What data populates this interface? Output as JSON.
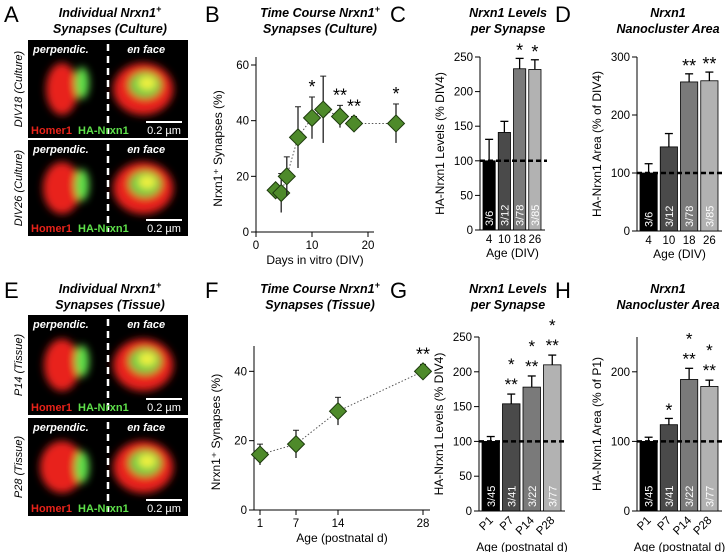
{
  "panels": {
    "A": {
      "letter": "A",
      "title1": "Individual Nrxn1",
      "title_sup": "+",
      "title2": "Synapses (Culture)",
      "images": [
        {
          "row": "DIV18 (Culture)",
          "left": "perpendic.",
          "right": "en face",
          "scale": "0.2 µm",
          "stain1": "Homer1",
          "stain2": "HA-Nrxn1"
        },
        {
          "row": "DIV26 (Culture)",
          "left": "perpendic.",
          "right": "en face",
          "scale": "0.2 µm",
          "stain1": "Homer1",
          "stain2": "HA-Nrxn1"
        }
      ]
    },
    "E": {
      "letter": "E",
      "title1": "Individual Nrxn1",
      "title_sup": "+",
      "title2": "Synapses (Tissue)",
      "images": [
        {
          "row": "P14 (Tissue)",
          "left": "perpendic.",
          "right": "en face",
          "scale": "0.2 µm",
          "stain1": "Homer1",
          "stain2": "HA-Nrxn1"
        },
        {
          "row": "P28 (Tissue)",
          "left": "perpendic.",
          "right": "en face",
          "scale": "0.2 µm",
          "stain1": "Homer1",
          "stain2": "HA-Nrxn1"
        }
      ]
    }
  },
  "colors": {
    "marker": "#4e8a2a",
    "red": "#e8231a",
    "green": "#5ee04a",
    "yellow": "#f0f040"
  },
  "chart_data": [
    {
      "id": "B",
      "letter": "B",
      "type": "line",
      "title1": "Time Course Nrxn1",
      "title_sup": "+",
      "title2": "Synapses (Culture)",
      "xlabel": "Days in vitro  (DIV)",
      "ylabel": "Nrxn1⁺ Synapses (%)",
      "xlim": [
        0,
        25
      ],
      "ylim": [
        0,
        60
      ],
      "xticks": [
        0,
        10,
        20
      ],
      "yticks": [
        0,
        20,
        40,
        60
      ],
      "points": [
        {
          "x": 3.5,
          "y": 15,
          "err": 2,
          "sig": ""
        },
        {
          "x": 4.5,
          "y": 14,
          "err": 7,
          "sig": ""
        },
        {
          "x": 5.5,
          "y": 20,
          "err": 7,
          "sig": ""
        },
        {
          "x": 7.5,
          "y": 34,
          "err": 11,
          "sig": ""
        },
        {
          "x": 10,
          "y": 41,
          "err": 7.5,
          "sig": "*"
        },
        {
          "x": 12,
          "y": 44,
          "err": 12,
          "sig": ""
        },
        {
          "x": 15,
          "y": 41.5,
          "err": 4,
          "sig": "**"
        },
        {
          "x": 17.5,
          "y": 39,
          "err": 2.5,
          "sig": "**"
        },
        {
          "x": 25,
          "y": 39,
          "err": 7,
          "sig": "*"
        }
      ]
    },
    {
      "id": "C",
      "letter": "C",
      "type": "bar",
      "title1": "Nrxn1 Levels",
      "title2": "per Synapse",
      "xlabel": "Age (DIV)",
      "ylabel": "HA-Nrxn1 Levels (% DIV4)",
      "ylim": [
        0,
        250
      ],
      "yticks": [
        0,
        50,
        100,
        150,
        200,
        250
      ],
      "refline": 100,
      "categories": [
        "4",
        "10",
        "18",
        "26"
      ],
      "values": [
        100,
        141,
        233,
        232
      ],
      "errors": [
        31,
        16,
        15,
        14
      ],
      "n_labels": [
        "3/6",
        "3/12",
        "3/78",
        "3/85"
      ],
      "sig": [
        "",
        "",
        "*",
        "*"
      ]
    },
    {
      "id": "D",
      "letter": "D",
      "type": "bar",
      "title1": "Nrxn1",
      "title2": "Nanocluster Area",
      "xlabel": "Age (DIV)",
      "ylabel": "HA-Nrxn1 Area (% of DIV4)",
      "ylim": [
        0,
        300
      ],
      "yticks": [
        0,
        100,
        200,
        300
      ],
      "refline": 100,
      "categories": [
        "4",
        "10",
        "18",
        "26"
      ],
      "values": [
        100,
        145,
        257,
        259
      ],
      "errors": [
        16,
        23,
        14,
        15
      ],
      "n_labels": [
        "3/6",
        "3/12",
        "3/78",
        "3/85"
      ],
      "sig": [
        "",
        "",
        "**",
        "**"
      ]
    },
    {
      "id": "F",
      "letter": "F",
      "type": "line",
      "title1": "Time Course Nrxn1",
      "title_sup": "+",
      "title2": "Synapses (Tissue)",
      "xlabel": "Age (postnatal d)",
      "ylabel": "Nrxn1⁺ Synapses (%)",
      "xlim": [
        0,
        29
      ],
      "ylim": [
        0,
        45
      ],
      "xticks": [
        1,
        7,
        14,
        28
      ],
      "yticks": [
        0,
        20,
        40
      ],
      "points": [
        {
          "x": 1,
          "y": 16,
          "err": 3,
          "sig": ""
        },
        {
          "x": 7,
          "y": 19,
          "err": 4,
          "sig": ""
        },
        {
          "x": 14,
          "y": 28.5,
          "err": 4,
          "sig": ""
        },
        {
          "x": 28,
          "y": 40,
          "err": 2,
          "sig": "**"
        }
      ]
    },
    {
      "id": "G",
      "letter": "G",
      "type": "bar",
      "title1": "Nrxn1 Levels",
      "title2": "per Synapse",
      "xlabel": "Age (postnatal d)",
      "ylabel": "HA-Nrxn1 Levels (% DIV4)",
      "ylim": [
        0,
        250
      ],
      "yticks": [
        0,
        50,
        100,
        150,
        200,
        250
      ],
      "refline": 100,
      "categories": [
        "P1",
        "P7",
        "P14",
        "P28"
      ],
      "values": [
        100,
        154,
        178,
        210
      ],
      "errors": [
        7,
        14,
        16,
        14
      ],
      "n_labels": [
        "3/45",
        "3/41",
        "3/22",
        "3/77"
      ],
      "sig": [
        "",
        "***",
        "***",
        "***"
      ]
    },
    {
      "id": "H",
      "letter": "H",
      "type": "bar",
      "title1": "Nrxn1",
      "title2": "Nanocluster Area",
      "xlabel": "Age (postnatal d)",
      "ylabel": "HA-Nrxn1 Area (% of P1)",
      "ylim": [
        0,
        250
      ],
      "yticks": [
        0,
        100,
        200
      ],
      "refline": 100,
      "categories": [
        "P1",
        "P7",
        "P14",
        "P28"
      ],
      "values": [
        100,
        124,
        189,
        179
      ],
      "errors": [
        6,
        9,
        16,
        9
      ],
      "n_labels": [
        "3/45",
        "3/41",
        "3/22",
        "3/77"
      ],
      "sig": [
        "",
        "*",
        "***",
        "***"
      ]
    }
  ]
}
